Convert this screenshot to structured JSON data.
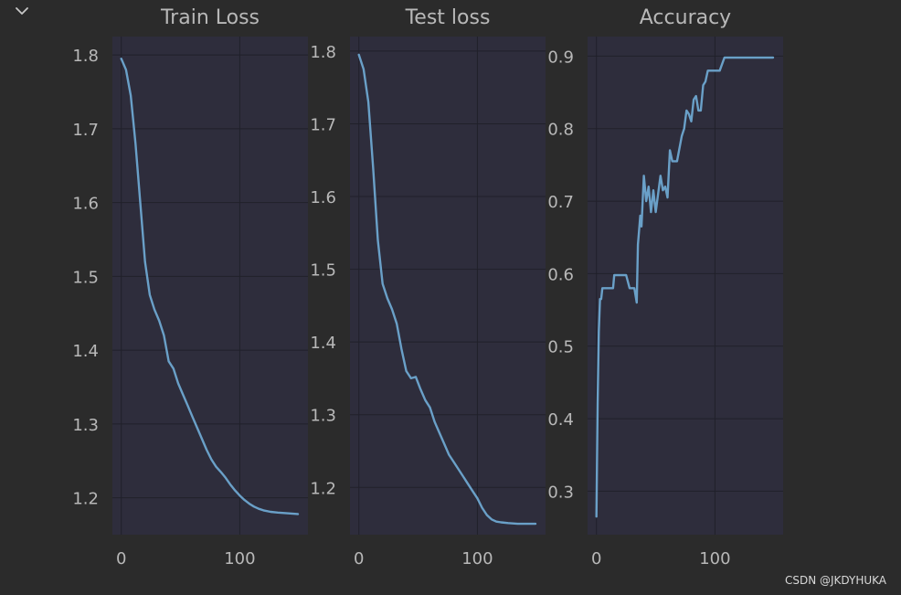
{
  "toolbar": {
    "collapse_icon": "chevron-down-icon"
  },
  "watermark": "CSDN @JKDYHUKA",
  "colors": {
    "background": "#2b2b2b",
    "plot_bg": "#2e2d3c",
    "grid": "#20202a",
    "line": "#6aa0c8",
    "text": "#b8b8b8"
  },
  "chart_data": [
    {
      "type": "line",
      "title": "Train Loss",
      "xlabel": "",
      "ylabel": "",
      "grid": true,
      "xlim": [
        -7.5,
        157.5
      ],
      "ylim": [
        1.15,
        1.825
      ],
      "xticks": [
        0,
        100
      ],
      "yticks": [
        1.2,
        1.3,
        1.4,
        1.5,
        1.6,
        1.7,
        1.8
      ],
      "x": [
        0,
        4,
        8,
        12,
        16,
        20,
        24,
        28,
        32,
        36,
        40,
        44,
        48,
        52,
        56,
        60,
        64,
        68,
        72,
        76,
        80,
        84,
        88,
        92,
        96,
        100,
        104,
        108,
        112,
        116,
        120,
        126,
        132,
        140,
        149
      ],
      "y": [
        1.795,
        1.78,
        1.745,
        1.68,
        1.6,
        1.52,
        1.475,
        1.455,
        1.44,
        1.42,
        1.385,
        1.375,
        1.355,
        1.34,
        1.325,
        1.31,
        1.295,
        1.28,
        1.265,
        1.252,
        1.242,
        1.235,
        1.227,
        1.218,
        1.21,
        1.203,
        1.197,
        1.192,
        1.188,
        1.185,
        1.183,
        1.181,
        1.18,
        1.179,
        1.178
      ]
    },
    {
      "type": "line",
      "title": "Test loss",
      "xlabel": "",
      "ylabel": "",
      "grid": true,
      "xlim": [
        -7.5,
        157.5
      ],
      "ylim": [
        1.135,
        1.82
      ],
      "xticks": [
        0,
        100
      ],
      "yticks": [
        1.2,
        1.3,
        1.4,
        1.5,
        1.6,
        1.7,
        1.8
      ],
      "x": [
        0,
        4,
        8,
        12,
        16,
        20,
        24,
        28,
        32,
        36,
        40,
        44,
        48,
        52,
        56,
        60,
        64,
        68,
        72,
        76,
        80,
        84,
        88,
        92,
        96,
        100,
        104,
        108,
        112,
        116,
        120,
        126,
        134,
        142,
        149
      ],
      "y": [
        1.795,
        1.775,
        1.73,
        1.64,
        1.54,
        1.48,
        1.46,
        1.445,
        1.425,
        1.39,
        1.36,
        1.35,
        1.352,
        1.335,
        1.32,
        1.31,
        1.29,
        1.275,
        1.26,
        1.245,
        1.235,
        1.225,
        1.215,
        1.205,
        1.195,
        1.185,
        1.172,
        1.162,
        1.156,
        1.153,
        1.152,
        1.151,
        1.15,
        1.15,
        1.15
      ]
    },
    {
      "type": "line",
      "title": "Accuracy",
      "xlabel": "",
      "ylabel": "",
      "grid": true,
      "xlim": [
        -7.5,
        157.5
      ],
      "ylim": [
        0.24,
        0.927
      ],
      "xticks": [
        0,
        100
      ],
      "yticks": [
        0.3,
        0.4,
        0.5,
        0.6,
        0.7,
        0.8,
        0.9
      ],
      "x": [
        0,
        1,
        2,
        3,
        4,
        5,
        6,
        10,
        14,
        15,
        18,
        22,
        25,
        28,
        32,
        34,
        35,
        37,
        38,
        40,
        42,
        44,
        46,
        48,
        50,
        54,
        56,
        58,
        60,
        62,
        64,
        66,
        68,
        72,
        74,
        76,
        78,
        80,
        82,
        84,
        86,
        88,
        90,
        92,
        94,
        96,
        98,
        100,
        104,
        108,
        112,
        120,
        130,
        140,
        149
      ],
      "y": [
        0.265,
        0.42,
        0.52,
        0.565,
        0.565,
        0.58,
        0.58,
        0.58,
        0.58,
        0.598,
        0.598,
        0.598,
        0.598,
        0.58,
        0.58,
        0.56,
        0.64,
        0.68,
        0.665,
        0.735,
        0.7,
        0.72,
        0.685,
        0.715,
        0.685,
        0.735,
        0.715,
        0.72,
        0.705,
        0.77,
        0.755,
        0.755,
        0.755,
        0.79,
        0.8,
        0.825,
        0.82,
        0.81,
        0.84,
        0.845,
        0.825,
        0.825,
        0.86,
        0.865,
        0.88,
        0.88,
        0.88,
        0.88,
        0.88,
        0.898,
        0.898,
        0.898,
        0.898,
        0.898,
        0.898
      ]
    }
  ]
}
